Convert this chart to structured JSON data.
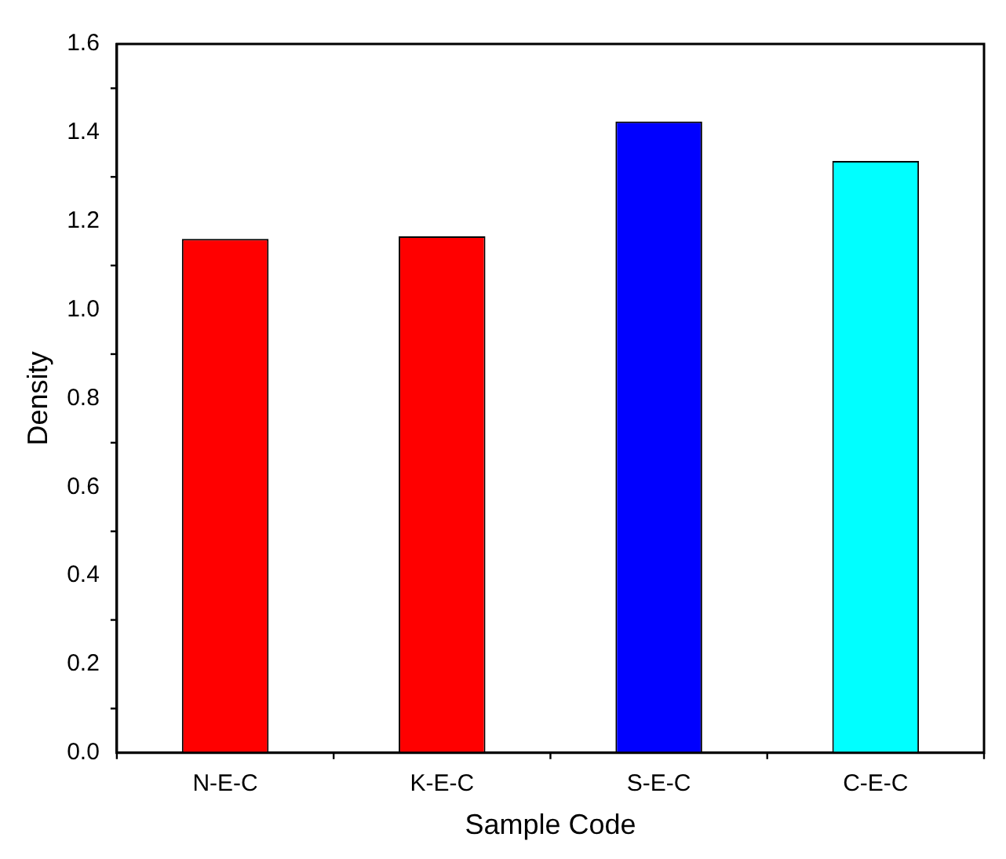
{
  "chart_data": {
    "type": "bar",
    "xlabel": "Sample Code",
    "ylabel": "Density",
    "categories": [
      "N-E-C",
      "K-E-C",
      "S-E-C",
      "C-E-C"
    ],
    "values": [
      1.16,
      1.166,
      1.425,
      1.336
    ],
    "colors": [
      "#ff0000",
      "#ff0000",
      "#0000ff",
      "#00ffff"
    ],
    "ylim": [
      0,
      1.6
    ],
    "yticks": [
      {
        "value": 0,
        "label": "0.0"
      },
      0.2,
      0.4,
      0.6,
      0.8,
      {
        "value": 1,
        "label": "1.0"
      },
      1.2,
      1.4,
      1.6
    ],
    "grid": false,
    "legend": false
  }
}
